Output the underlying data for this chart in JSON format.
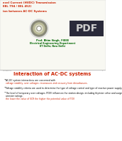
{
  "bg_color": "#ffffff",
  "header_bg": "#f0f0e8",
  "title_line1": "evel Current (HVDC) Transmission",
  "title_line2": "EEL 794 / EEL 452)",
  "subtitle": "ion between AC-DC Systems",
  "prof_name": "Prof. Bhim Singh, FIEEE",
  "dept": "Electrical Engineering Department",
  "inst": "IIT Delhi, New Delhi",
  "slide_title": "Interaction of AC-DC systems",
  "slide_title_color": "#cc2200",
  "bullet1_black": "AC-DC system interactions are concerned with ",
  "bullet1_red": "voltage stability, over voltages, resonances and recovery from disturbances.",
  "bullet2": "Voltage stability criteria are used to determine the type of voltage control and type of reactive power supply.",
  "bullet3_black": "The level of temporary over voltages (TOV) influences  the station design, including thyristor valve and surge arrester ratings; ",
  "bullet3_red": "the lower the value of SCR the higher the potential value of TOV.",
  "header_text_color": "#cc2200",
  "subtitle_color": "#cc2200",
  "body_text_color": "#000000",
  "red_text_color": "#cc2200",
  "prof_color": "#006600",
  "divider_color": "#aaaaaa",
  "page_num_color": "#888888",
  "pdf_bg": "#2a2a3a",
  "pdf_text": "#cccccc"
}
